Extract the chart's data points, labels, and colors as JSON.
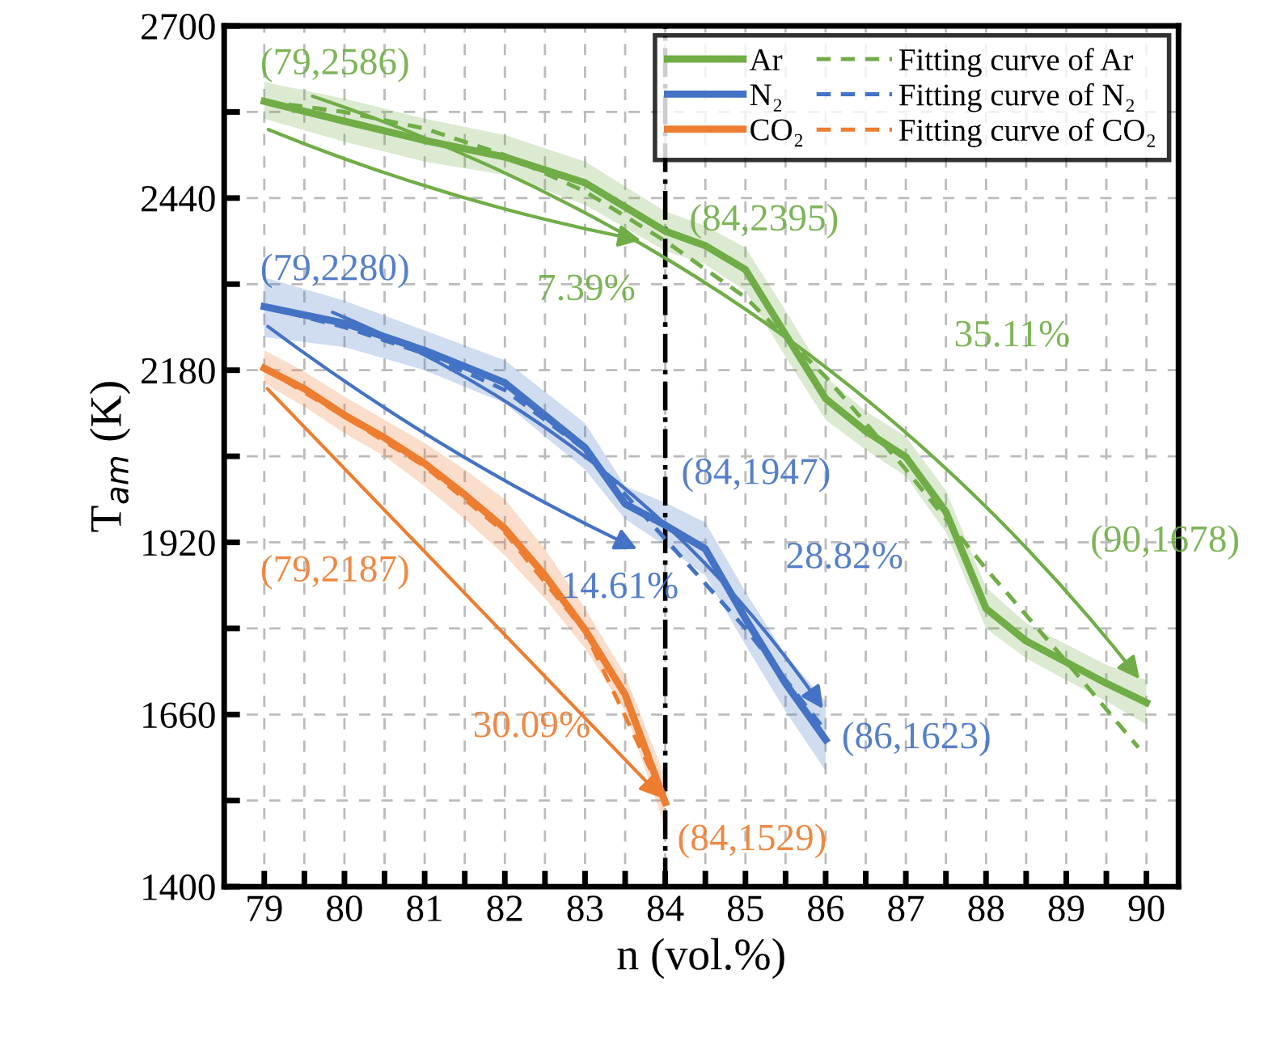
{
  "chart_data": {
    "type": "line",
    "xlabel": "n (vol.%)",
    "ylabel": "T$_{am}$ (K)",
    "xlim": [
      78.5,
      90.4
    ],
    "ylim": [
      1400,
      2700
    ],
    "xticks": [
      79,
      {
        "value": 79.5,
        "label": null
      },
      80,
      {
        "value": 80.5,
        "label": null
      },
      81,
      {
        "value": 81.5,
        "label": null
      },
      82,
      {
        "value": 82.5,
        "label": null
      },
      83,
      {
        "value": 83.5,
        "label": null
      },
      84,
      {
        "value": 84.5,
        "label": null
      },
      85,
      {
        "value": 85.5,
        "label": null
      },
      86,
      {
        "value": 86.5,
        "label": null
      },
      87,
      {
        "value": 87.5,
        "label": null
      },
      88,
      {
        "value": 88.5,
        "label": null
      },
      89,
      {
        "value": 89.5,
        "label": null
      },
      90
    ],
    "yticks": [
      1400,
      {
        "value": 1530,
        "label": null
      },
      1660,
      {
        "value": 1790,
        "label": null
      },
      1920,
      {
        "value": 2050,
        "label": null
      },
      2180,
      {
        "value": 2310,
        "label": null
      },
      2440,
      {
        "value": 2570,
        "label": null
      },
      2700
    ],
    "grid": true,
    "legend": "top right",
    "marker": "none",
    "series": [
      {
        "name": "Ar",
        "color": "#70ad47",
        "line_style": "solid",
        "x": [
          79,
          80,
          81,
          82,
          83,
          84,
          84.5,
          85,
          85.5,
          86,
          86.5,
          87,
          87.5,
          88,
          88.5,
          89,
          89.5,
          90
        ],
        "values": [
          2586,
          2556,
          2527,
          2502,
          2463,
          2390,
          2368,
          2332,
          2234,
          2137,
          2088,
          2049,
          1966,
          1820,
          1771,
          1739,
          1707,
          1678
        ],
        "lower": [
          2560,
          2525,
          2495,
          2475,
          2430,
          2360,
          2340,
          2300,
          2200,
          2105,
          2060,
          2020,
          1935,
          1790,
          1745,
          1712,
          1680,
          1645
        ],
        "upper": [
          2615,
          2590,
          2560,
          2535,
          2495,
          2420,
          2398,
          2365,
          2270,
          2170,
          2118,
          2080,
          1998,
          1852,
          1798,
          1766,
          1735,
          1712
        ]
      },
      {
        "name": "N₂",
        "color": "#4472c4",
        "line_style": "solid",
        "x": [
          79,
          80,
          81,
          82,
          83,
          83.5,
          84,
          84.5,
          85,
          85.5,
          86
        ],
        "values": [
          2276,
          2251,
          2210,
          2161,
          2063,
          1978,
          1946,
          1910,
          1805,
          1707,
          1622
        ],
        "lower": [
          2230,
          2215,
          2180,
          2130,
          2030,
          1955,
          1915,
          1870,
          1765,
          1665,
          1575
        ],
        "upper": [
          2320,
          2285,
          2240,
          2195,
          2100,
          2005,
          1980,
          1950,
          1845,
          1750,
          1680
        ]
      },
      {
        "name": "CO₂",
        "color": "#ed7d31",
        "line_style": "solid",
        "x": [
          79,
          79.5,
          80,
          80.5,
          81,
          81.5,
          82,
          82.5,
          83,
          83.5,
          84
        ],
        "values": [
          2183,
          2152,
          2112,
          2078,
          2039,
          1992,
          1941,
          1870,
          1788,
          1690,
          1527
        ],
        "lower": [
          2160,
          2125,
          2085,
          2050,
          2005,
          1955,
          1900,
          1835,
          1760,
          1665,
          1490
        ],
        "upper": [
          2210,
          2178,
          2140,
          2105,
          2070,
          2030,
          1985,
          1910,
          1820,
          1720,
          1565
        ]
      },
      {
        "name": "Fitting curve of Ar",
        "color": "#70ad47",
        "line_style": "dashed",
        "x": [
          79,
          80,
          81,
          82,
          83,
          84,
          85,
          86,
          87,
          88,
          89,
          89.9
        ],
        "values": [
          2586,
          2570,
          2545,
          2505,
          2450,
          2375,
          2290,
          2170,
          2030,
          1880,
          1740,
          1610
        ]
      },
      {
        "name": "Fitting curve of N₂",
        "color": "#4472c4",
        "line_style": "dashed",
        "x": [
          79,
          80,
          81,
          82,
          83,
          84,
          85,
          86
        ],
        "values": [
          2276,
          2245,
          2205,
          2150,
          2060,
          1925,
          1790,
          1635
        ]
      },
      {
        "name": "Fitting curve of CO₂",
        "color": "#ed7d31",
        "line_style": "dashed",
        "x": [
          79,
          80,
          81,
          82,
          83,
          84
        ],
        "values": [
          2183,
          2110,
          2035,
          1935,
          1785,
          1530
        ]
      }
    ],
    "ref_lines": [
      {
        "axis": "x",
        "value": 84,
        "color": "#000000",
        "line_style": "dashdot"
      }
    ],
    "annotations": [
      {
        "text": "(79,2586)",
        "x": 79,
        "y": 2586
      },
      {
        "text": "(84,2395)",
        "x": 84,
        "y": 2395
      },
      "(90,1678)",
      {
        "text": "(79,2280)",
        "x": 79,
        "y": 2280
      },
      {
        "text": "(84,1947)",
        "x": 84,
        "y": 1947
      },
      {
        "text": "(86,1623)",
        "x": 86,
        "y": 1623
      },
      "(79,2187)",
      {
        "text": "(84,1529)",
        "x": 84,
        "y": 1529
      },
      "7.39%",
      "35.11%",
      "14.61%",
      "28.82%",
      "30.09%"
    ]
  }
}
